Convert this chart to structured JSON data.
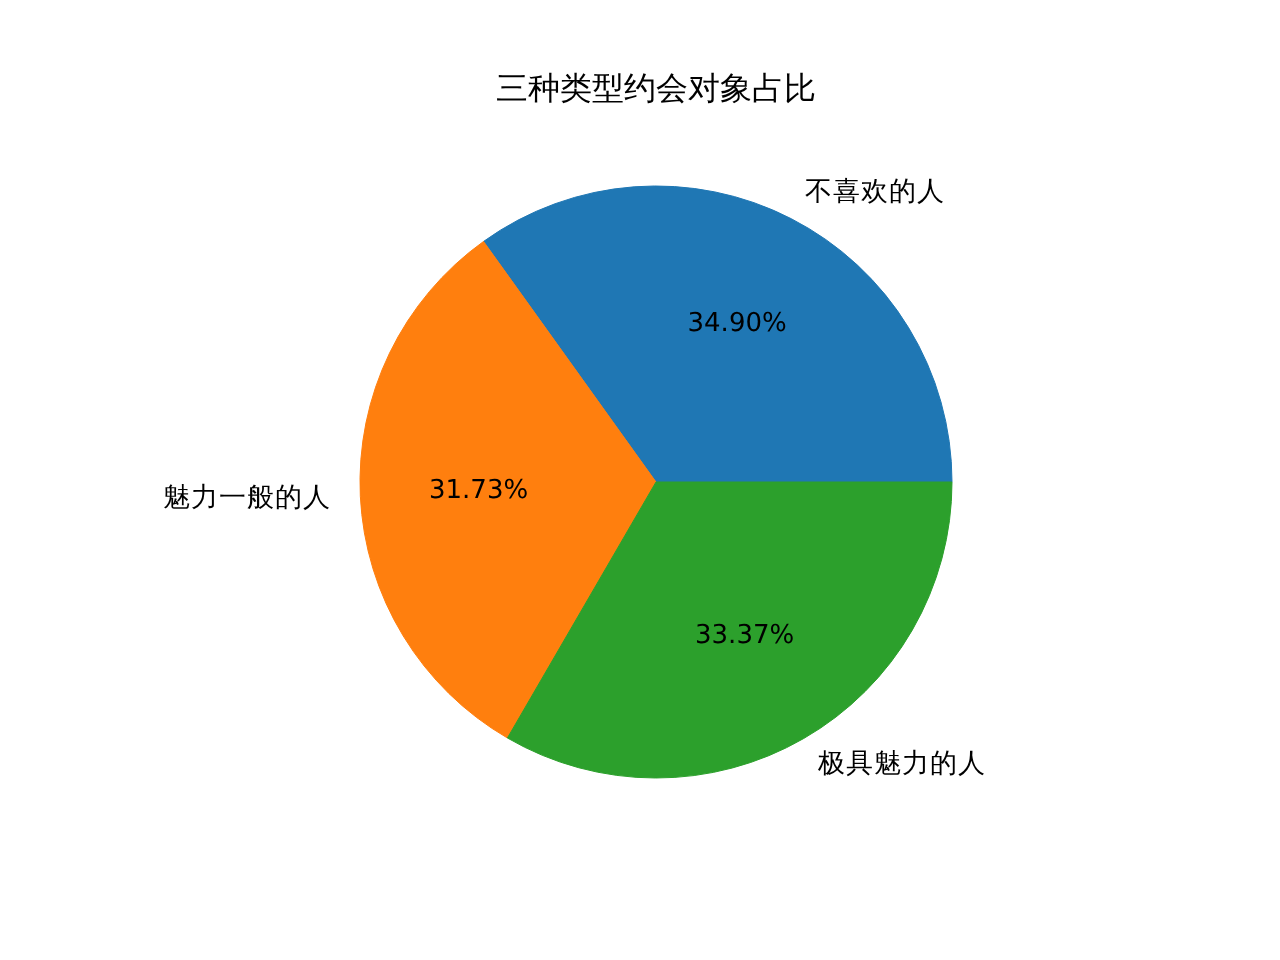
{
  "chart_data": {
    "type": "pie",
    "title": "三种类型约会对象占比",
    "categories": [
      "不喜欢的人",
      "魅力一般的人",
      "极具魅力的人"
    ],
    "values": [
      34.9,
      31.73,
      33.37
    ],
    "colors": [
      "#1f77b4",
      "#ff7f0e",
      "#2ca02c"
    ],
    "value_labels": [
      "34.90%",
      "31.73%",
      "33.37%"
    ]
  }
}
